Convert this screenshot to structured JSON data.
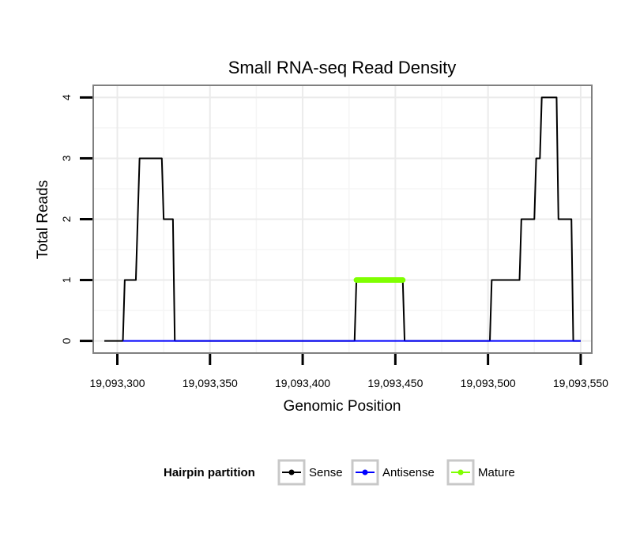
{
  "chart_data": {
    "type": "line",
    "title": "Small RNA-seq Read Density",
    "xlabel": "Genomic Position",
    "ylabel": "Total Reads",
    "xlim": [
      19093287,
      19093556
    ],
    "ylim": [
      -0.2,
      4.2
    ],
    "x_ticks": [
      19093300,
      19093350,
      19093400,
      19093450,
      19093500,
      19093550
    ],
    "x_tick_labels": [
      "19,093,300",
      "19,093,350",
      "19,093,400",
      "19,093,450",
      "19,093,500",
      "19,093,550"
    ],
    "y_ticks": [
      0,
      1,
      2,
      3,
      4
    ],
    "y_tick_labels": [
      "0",
      "1",
      "2",
      "3",
      "4"
    ],
    "grid": true,
    "legend": {
      "title": "Hairpin partition",
      "position": "bottom",
      "entries": [
        {
          "label": "Sense",
          "color": "#000000"
        },
        {
          "label": "Antisense",
          "color": "#0000ff"
        },
        {
          "label": "Mature",
          "color": "#7fff00"
        }
      ]
    },
    "series": [
      {
        "name": "Sense",
        "color": "#000000",
        "points": [
          [
            19093293,
            0
          ],
          [
            19093303,
            0
          ],
          [
            19093304,
            1
          ],
          [
            19093310,
            1
          ],
          [
            19093312,
            3
          ],
          [
            19093324,
            3
          ],
          [
            19093325,
            2
          ],
          [
            19093330,
            2
          ],
          [
            19093331,
            0
          ],
          [
            19093428,
            0
          ],
          [
            19093429,
            1
          ],
          [
            19093454,
            1
          ],
          [
            19093455,
            0
          ],
          [
            19093501,
            0
          ],
          [
            19093502,
            1
          ],
          [
            19093517,
            1
          ],
          [
            19093518,
            2
          ],
          [
            19093525,
            2
          ],
          [
            19093526,
            3
          ],
          [
            19093528,
            3
          ],
          [
            19093529,
            4
          ],
          [
            19093537,
            4
          ],
          [
            19093538,
            2
          ],
          [
            19093545,
            2
          ],
          [
            19093546,
            0
          ],
          [
            19093550,
            0
          ]
        ]
      },
      {
        "name": "Antisense",
        "color": "#0000ff",
        "points": [
          [
            19093303,
            0
          ],
          [
            19093550,
            0
          ]
        ]
      },
      {
        "name": "Mature",
        "color": "#7fff00",
        "points": [
          [
            19093429,
            1
          ],
          [
            19093454,
            1
          ]
        ]
      }
    ]
  }
}
